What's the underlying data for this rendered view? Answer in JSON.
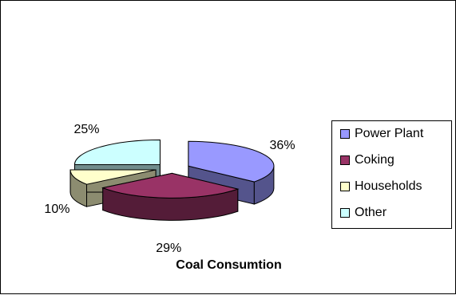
{
  "chart_data": {
    "type": "pie",
    "title": "Coal Consumtion",
    "categories": [
      "Power Plant",
      "Coking",
      "Households",
      "Other"
    ],
    "values": [
      36,
      29,
      10,
      25
    ],
    "labels": [
      "36%",
      "29%",
      "10%",
      "25%"
    ],
    "colors": [
      "#9999FF",
      "#993366",
      "#FFFFCC",
      "#CCFFFF"
    ],
    "exploded": true,
    "three_d": true,
    "legend": "right"
  }
}
